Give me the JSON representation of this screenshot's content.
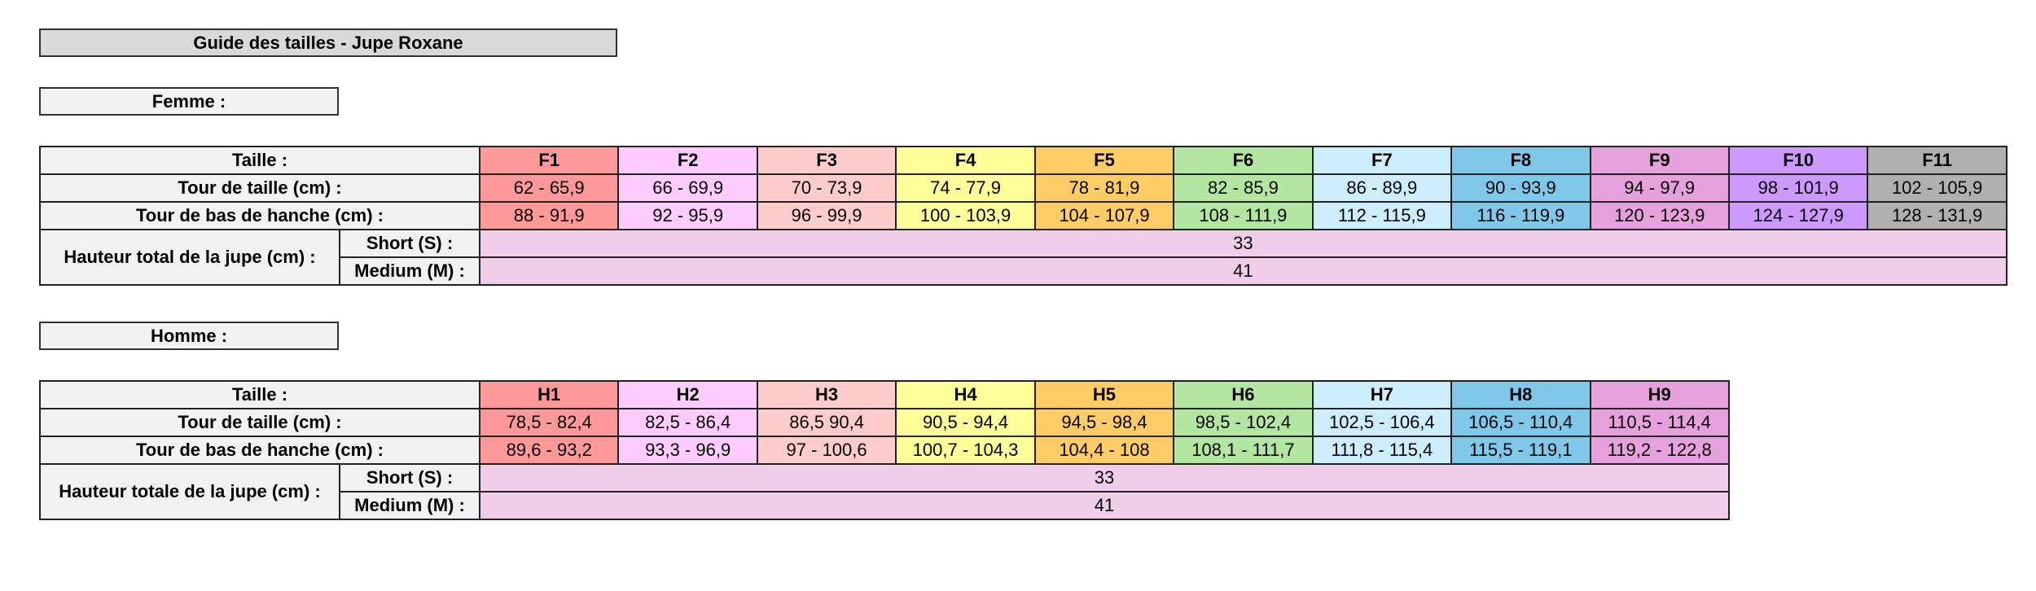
{
  "title": "Guide des tailles - Jupe Roxane",
  "sections": [
    {
      "heading": "Femme :",
      "table": {
        "size_label": "Taille :",
        "sizes": [
          "F1",
          "F2",
          "F3",
          "F4",
          "F5",
          "F6",
          "F7",
          "F8",
          "F9",
          "F10",
          "F11"
        ],
        "rows": [
          {
            "label": "Tour de taille (cm) :",
            "values": [
              "62 - 65,9",
              "66 - 69,9",
              "70 - 73,9",
              "74 - 77,9",
              "78 - 81,9",
              "82 - 85,9",
              "86 - 89,9",
              "90 - 93,9",
              "94 - 97,9",
              "98 - 101,9",
              "102 - 105,9"
            ]
          },
          {
            "label": "Tour de bas de hanche (cm) :",
            "values": [
              "88 - 91,9",
              "92 - 95,9",
              "96 - 99,9",
              "100 - 103,9",
              "104 - 107,9",
              "108 - 111,9",
              "112 - 115,9",
              "116 - 119,9",
              "120 - 123,9",
              "124 - 127,9",
              "128 - 131,9"
            ]
          }
        ],
        "height": {
          "label": "Hauteur total de la jupe (cm) :",
          "rows": [
            {
              "label": "Short (S) :",
              "value": 33
            },
            {
              "label": "Medium (M) :",
              "value": 41
            }
          ]
        }
      }
    },
    {
      "heading": "Homme :",
      "table": {
        "size_label": "Taille :",
        "sizes": [
          "H1",
          "H2",
          "H3",
          "H4",
          "H5",
          "H6",
          "H7",
          "H8",
          "H9"
        ],
        "rows": [
          {
            "label": "Tour de taille (cm) :",
            "values": [
              "78,5 - 82,4",
              "82,5 - 86,4",
              "86,5 90,4",
              "90,5 - 94,4",
              "94,5 - 98,4",
              "98,5 - 102,4",
              "102,5 - 106,4",
              "106,5 - 110,4",
              "110,5 - 114,4"
            ]
          },
          {
            "label": "Tour de bas de hanche (cm) :",
            "values": [
              "89,6 - 93,2",
              "93,3 - 96,9",
              "97 - 100,6",
              "100,7 - 104,3",
              "104,4 - 108",
              "108,1 - 111,7",
              "111,8 - 115,4",
              "115,5 - 119,1",
              "119,2 - 122,8"
            ]
          }
        ],
        "height": {
          "label": "Hauteur totale de la jupe (cm) :",
          "rows": [
            {
              "label": "Short (S) :",
              "value": 33
            },
            {
              "label": "Medium (M) :",
              "value": 41
            }
          ]
        }
      }
    }
  ]
}
